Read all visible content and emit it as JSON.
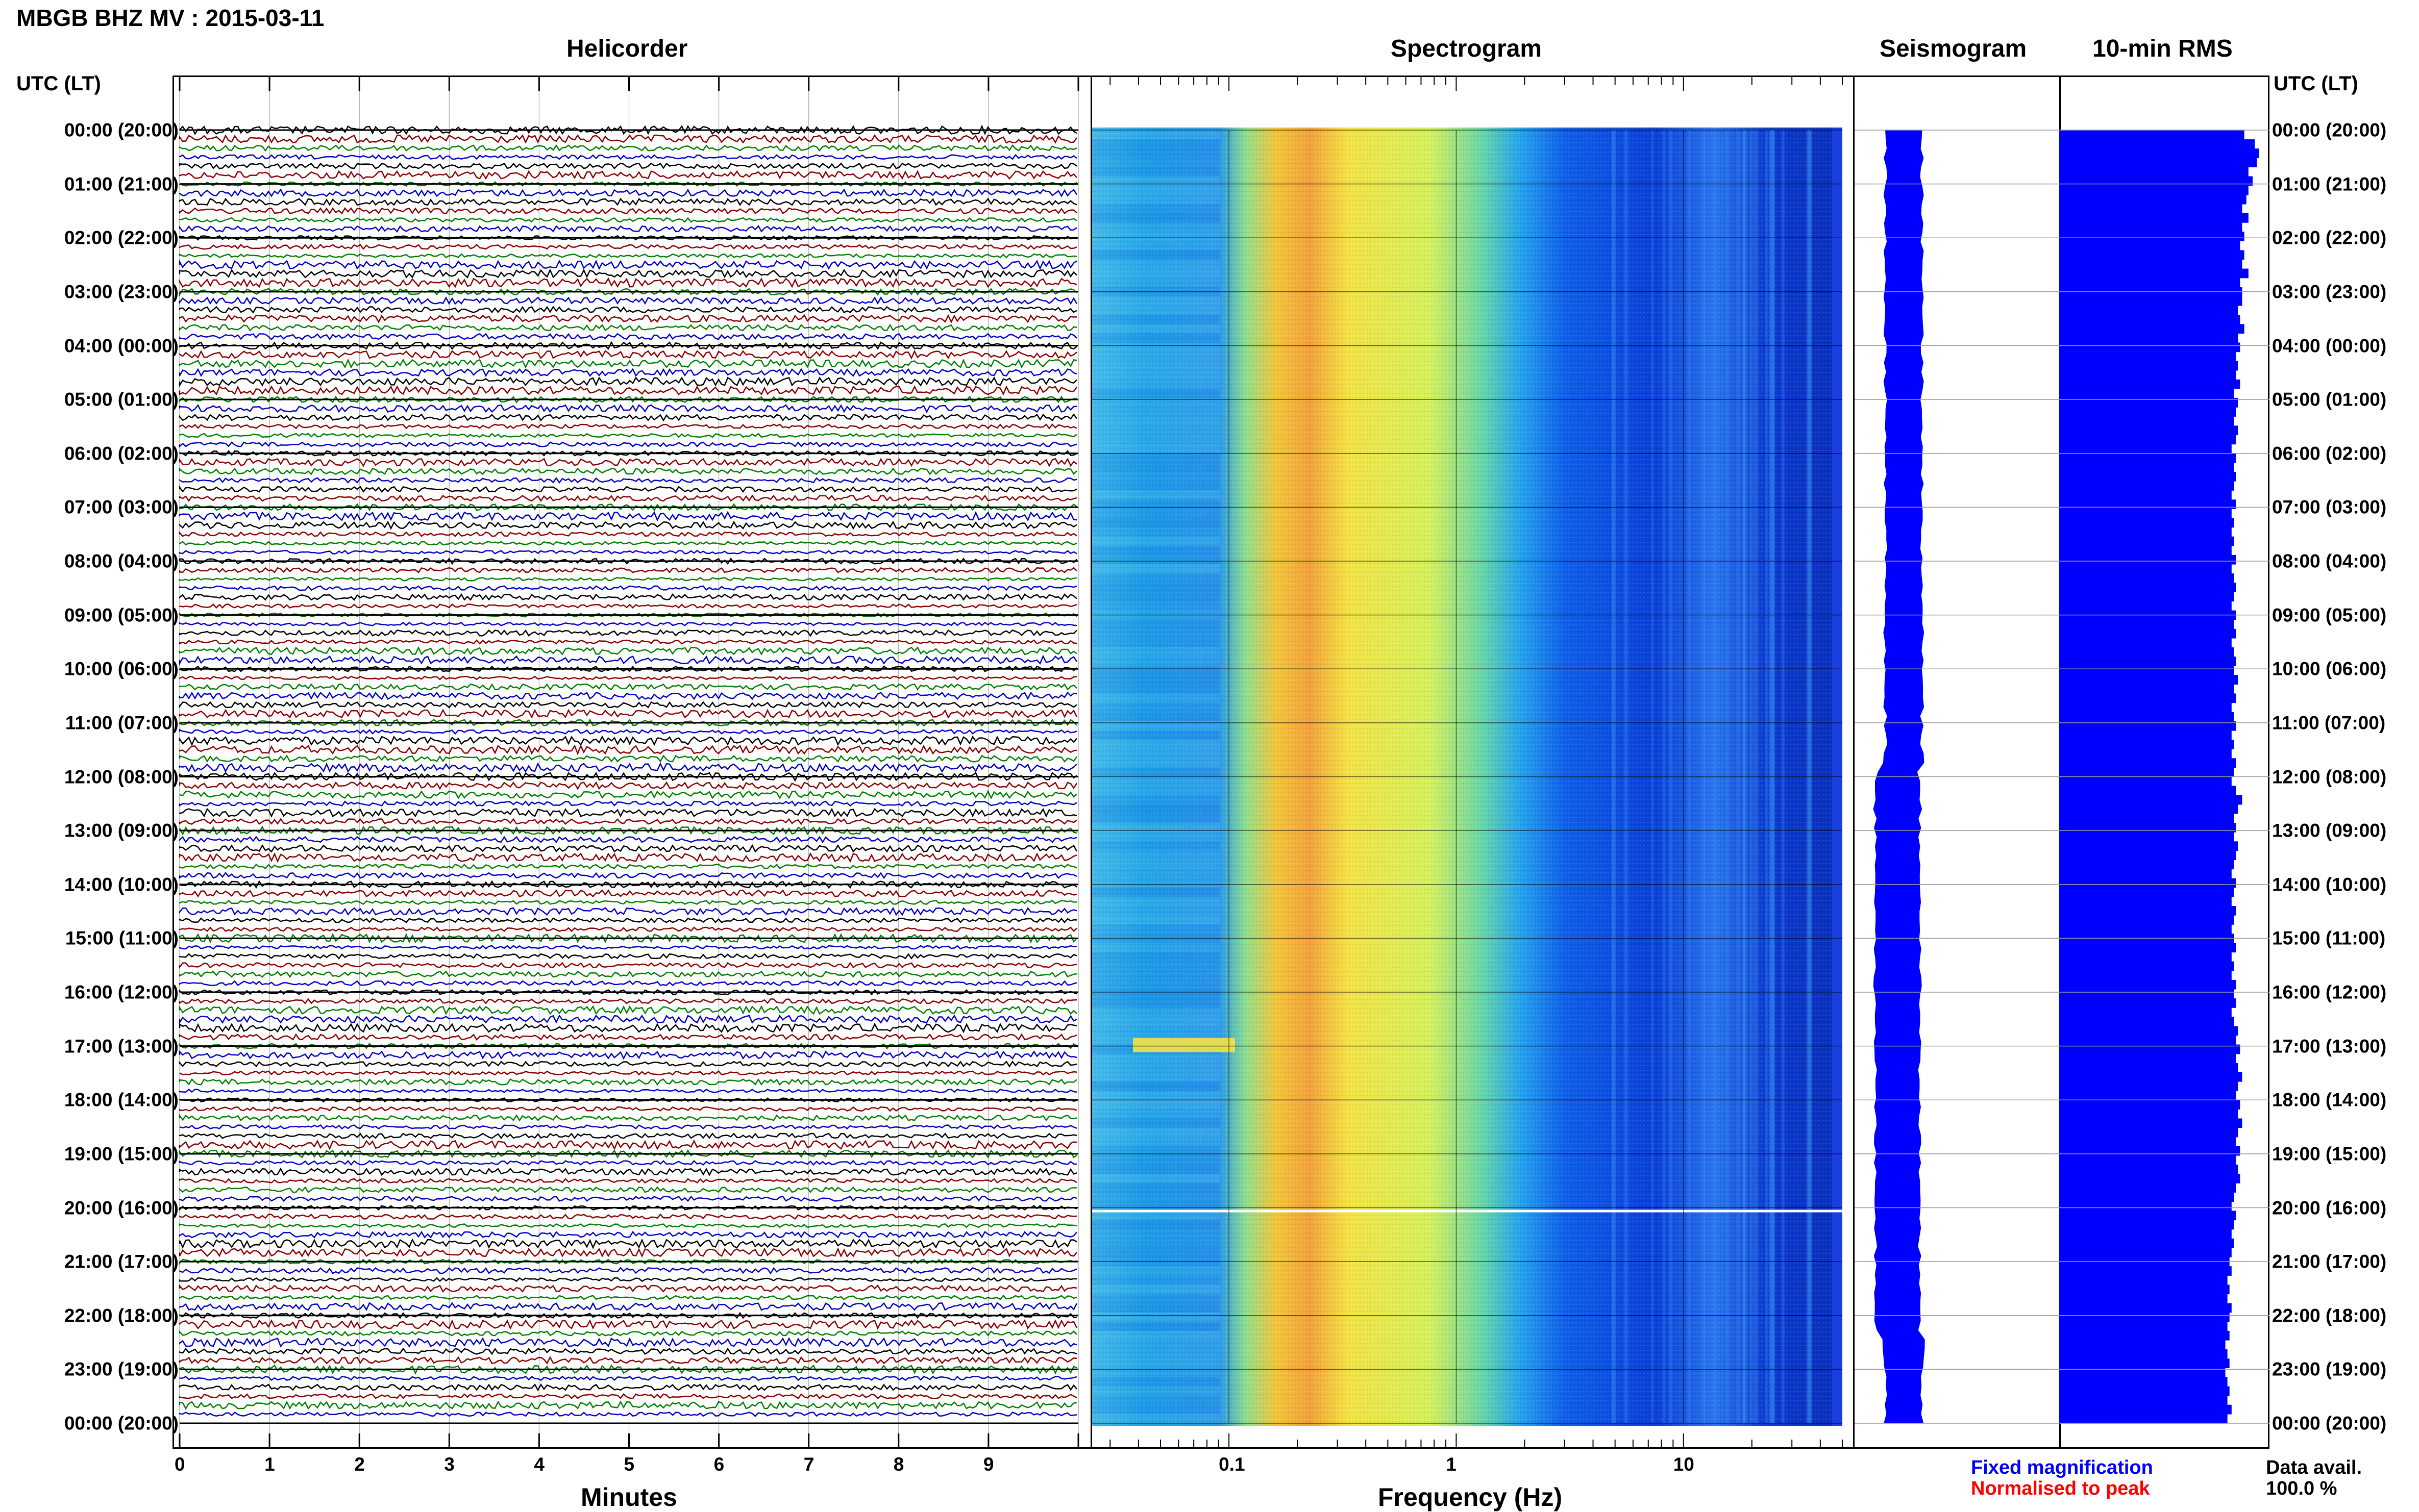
{
  "title": "MBGB BHZ MV : 2015-03-11",
  "panels": {
    "helicorder": "Helicorder",
    "spectrogram": "Spectrogram",
    "seismogram": "Seismogram",
    "rms": "10-min RMS"
  },
  "axis_headers": {
    "left": "UTC (LT)",
    "right": "UTC (LT)"
  },
  "xlabels": {
    "helicorder": "Minutes",
    "spectrogram": "Frequency (Hz)"
  },
  "legend": {
    "fixed": "Fixed magnification",
    "normalised": "Normalised to peak",
    "fixed_color": "#0000ff",
    "normalised_color": "#ff0000"
  },
  "data_avail": {
    "label": "Data avail.",
    "value": "100.0 %"
  },
  "colors": {
    "trace_cycle": [
      "#000000",
      "#8b0000",
      "#008000",
      "#0000cc"
    ],
    "seismogram": "#0000ff",
    "rms_bar": "#0000ff"
  },
  "chart_data": {
    "type": "heatmap",
    "time_ticks": [
      "00:00 (20:00)",
      "01:00 (21:00)",
      "02:00 (22:00)",
      "03:00 (23:00)",
      "04:00 (00:00)",
      "05:00 (01:00)",
      "06:00 (02:00)",
      "07:00 (03:00)",
      "08:00 (04:00)",
      "09:00 (05:00)",
      "10:00 (06:00)",
      "11:00 (07:00)",
      "12:00 (08:00)",
      "13:00 (09:00)",
      "14:00 (10:00)",
      "15:00 (11:00)",
      "16:00 (12:00)",
      "17:00 (13:00)",
      "18:00 (14:00)",
      "19:00 (15:00)",
      "20:00 (16:00)",
      "21:00 (17:00)",
      "22:00 (18:00)",
      "23:00 (19:00)",
      "00:00 (20:00)"
    ],
    "minute_ticks": [
      "0",
      "1",
      "2",
      "3",
      "4",
      "5",
      "6",
      "7",
      "8",
      "9"
    ],
    "minutes_range": [
      0,
      10
    ],
    "frequency_ticks": [
      "0.1",
      "1",
      "10"
    ],
    "frequency_range_hz": [
      0.025,
      50
    ],
    "frequency_scale": "log",
    "helicorder_lines_per_hour": 6,
    "rms_10min": [
      0.88,
      0.93,
      0.95,
      0.94,
      0.9,
      0.92,
      0.9,
      0.89,
      0.87,
      0.9,
      0.87,
      0.88,
      0.86,
      0.88,
      0.87,
      0.9,
      0.86,
      0.87,
      0.87,
      0.85,
      0.86,
      0.88,
      0.85,
      0.86,
      0.84,
      0.85,
      0.84,
      0.86,
      0.83,
      0.85,
      0.84,
      0.83,
      0.85,
      0.84,
      0.82,
      0.84,
      0.83,
      0.84,
      0.83,
      0.82,
      0.84,
      0.82,
      0.83,
      0.82,
      0.83,
      0.82,
      0.84,
      0.82,
      0.83,
      0.84,
      0.83,
      0.82,
      0.84,
      0.83,
      0.84,
      0.82,
      0.83,
      0.84,
      0.83,
      0.85,
      0.83,
      0.84,
      0.82,
      0.83,
      0.84,
      0.82,
      0.83,
      0.82,
      0.84,
      0.83,
      0.82,
      0.84,
      0.87,
      0.85,
      0.83,
      0.84,
      0.83,
      0.85,
      0.84,
      0.83,
      0.82,
      0.84,
      0.83,
      0.82,
      0.84,
      0.83,
      0.82,
      0.83,
      0.84,
      0.82,
      0.83,
      0.82,
      0.84,
      0.83,
      0.84,
      0.82,
      0.83,
      0.85,
      0.84,
      0.86,
      0.84,
      0.85,
      0.87,
      0.85,
      0.84,
      0.86,
      0.85,
      0.87,
      0.85,
      0.84,
      0.86,
      0.84,
      0.85,
      0.86,
      0.84,
      0.83,
      0.82,
      0.84,
      0.83,
      0.82,
      0.83,
      0.82,
      0.81,
      0.82,
      0.8,
      0.81,
      0.8,
      0.82,
      0.81,
      0.8,
      0.81,
      0.79,
      0.8,
      0.81,
      0.79,
      0.8,
      0.81,
      0.8,
      0.82,
      0.8
    ],
    "seismogram_envelope_10min": [
      0.16,
      0.17,
      0.16,
      0.17,
      0.16,
      0.16,
      0.16,
      0.17,
      0.16,
      0.16,
      0.17,
      0.16,
      0.16,
      0.17,
      0.17,
      0.16,
      0.17,
      0.16,
      0.17,
      0.17,
      0.16,
      0.17,
      0.17,
      0.16,
      0.16,
      0.17,
      0.16,
      0.17,
      0.17,
      0.16,
      0.17,
      0.16,
      0.17,
      0.16,
      0.17,
      0.16,
      0.17,
      0.16,
      0.17,
      0.17,
      0.16,
      0.17,
      0.17,
      0.16,
      0.17,
      0.16,
      0.17,
      0.17,
      0.16,
      0.17,
      0.17,
      0.16,
      0.17,
      0.16,
      0.17,
      0.17,
      0.16,
      0.17,
      0.17,
      0.16,
      0.17,
      0.16,
      0.17,
      0.16,
      0.17,
      0.17,
      0.16,
      0.17,
      0.18,
      0.19,
      0.2,
      0.2,
      0.21,
      0.21,
      0.2,
      0.21,
      0.2,
      0.21,
      0.2,
      0.21,
      0.2,
      0.21,
      0.2,
      0.21,
      0.2,
      0.21,
      0.21,
      0.2,
      0.21,
      0.21,
      0.2,
      0.21,
      0.21,
      0.2,
      0.21,
      0.21,
      0.2,
      0.21,
      0.21,
      0.2,
      0.21,
      0.2,
      0.21,
      0.21,
      0.2,
      0.21,
      0.21,
      0.2,
      0.21,
      0.21,
      0.2,
      0.21,
      0.2,
      0.21,
      0.21,
      0.2,
      0.21,
      0.21,
      0.2,
      0.21,
      0.2,
      0.21,
      0.2,
      0.2,
      0.21,
      0.2,
      0.21,
      0.2,
      0.21,
      0.2,
      0.19,
      0.18,
      0.17,
      0.17,
      0.16,
      0.17,
      0.16,
      0.17,
      0.16,
      0.17
    ]
  }
}
